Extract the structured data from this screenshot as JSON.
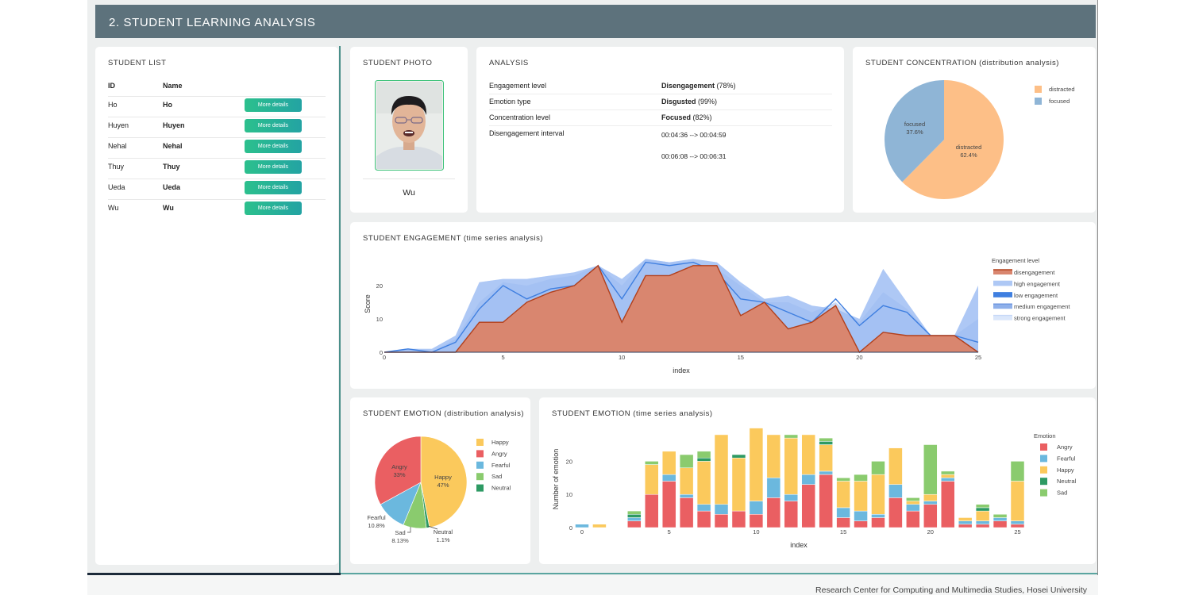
{
  "header": {
    "title": "2. STUDENT LEARNING ANALYSIS"
  },
  "student_list": {
    "title": "STUDENT LIST",
    "col_id": "ID",
    "col_name": "Name",
    "rows": [
      {
        "id": "Ho",
        "name": "Ho",
        "button": "More details"
      },
      {
        "id": "Huyen",
        "name": "Huyen",
        "button": "More details"
      },
      {
        "id": "Nehal",
        "name": "Nehal",
        "button": "More details"
      },
      {
        "id": "Thuy",
        "name": "Thuy",
        "button": "More details"
      },
      {
        "id": "Ueda",
        "name": "Ueda",
        "button": "More details"
      },
      {
        "id": "Wu",
        "name": "Wu",
        "button": "More details"
      }
    ]
  },
  "photo": {
    "title": "STUDENT PHOTO",
    "name": "Wu"
  },
  "analysis": {
    "title": "ANALYSIS",
    "engagement_label": "Engagement level",
    "engagement_value": "Disengagement",
    "engagement_pct": "(78%)",
    "emotion_label": "Emotion type",
    "emotion_value": "Disgusted",
    "emotion_pct": "(99%)",
    "concentration_label": "Concentration level",
    "concentration_value": "Focused",
    "concentration_pct": "(82%)",
    "interval_label": "Disengagement interval",
    "intervals": [
      "00:04:36 --> 00:04:59",
      "00:06:08 --> 00:06:31"
    ]
  },
  "colors": {
    "header": "#5d727c",
    "distracted": "#fdbf87",
    "focused": "#8fb5d6",
    "disengagement": "#d9866f",
    "engagement_band": "#aec8f5",
    "low_line": "#3f7fe0",
    "angry": "#ea5f62",
    "fearful": "#6bb8de",
    "happy": "#fbc95c",
    "neutral": "#2d9a63",
    "sad": "#8acb6e",
    "button_start": "#2cc08d",
    "button_end": "#23a3a3"
  },
  "concentration": {
    "title": "STUDENT CONCENTRATION (distribution analysis)",
    "legend": [
      "distracted",
      "focused"
    ],
    "slice_labels": {
      "distracted": [
        "distracted",
        "62.4%"
      ],
      "focused": [
        "focused",
        "37.6%"
      ]
    }
  },
  "engagement": {
    "title": "STUDENT ENGAGEMENT (time series analysis)",
    "legend_title": "Engagement level",
    "legend": [
      "disengagement",
      "high engagement",
      "low engagement",
      "medium engagement",
      "strong engagement"
    ],
    "xlabel": "index",
    "ylabel": "Score",
    "xticks": [
      "0",
      "5",
      "10",
      "15",
      "20",
      "25"
    ],
    "yticks": [
      "0",
      "10",
      "20"
    ]
  },
  "emotion_dist": {
    "title": "STUDENT EMOTION (distribution analysis)",
    "legend": [
      "Happy",
      "Angry",
      "Fearful",
      "Sad",
      "Neutral"
    ],
    "slice_labels": {
      "happy": [
        "Happy",
        "47%"
      ],
      "angry": [
        "Angry",
        "33%"
      ],
      "fearful": [
        "Fearful",
        "10.8%"
      ],
      "sad": [
        "Sad",
        "8.13%"
      ],
      "neutral": [
        "Neutral",
        "1.1%"
      ]
    }
  },
  "emotion_ts": {
    "title": "STUDENT EMOTION (time series analysis)",
    "legend_title": "Emotion",
    "legend": [
      "Angry",
      "Fearful",
      "Happy",
      "Neutral",
      "Sad"
    ],
    "xlabel": "index",
    "ylabel": "Number of emotion",
    "xticks": [
      "0",
      "5",
      "10",
      "15",
      "20",
      "25"
    ],
    "yticks": [
      "0",
      "10",
      "20"
    ]
  },
  "chart_data": [
    {
      "type": "pie",
      "title": "STUDENT CONCENTRATION (distribution analysis)",
      "labels": [
        "distracted",
        "focused"
      ],
      "values": [
        62.4,
        37.6
      ]
    },
    {
      "type": "area",
      "title": "STUDENT ENGAGEMENT (time series analysis)",
      "xlabel": "index",
      "ylabel": "Score",
      "x": [
        0,
        1,
        2,
        3,
        4,
        5,
        6,
        7,
        8,
        9,
        10,
        11,
        12,
        13,
        14,
        15,
        16,
        17,
        18,
        19,
        20,
        21,
        22,
        23,
        24,
        25
      ],
      "xlim": [
        0,
        25
      ],
      "ylim": [
        0,
        27
      ],
      "series": [
        {
          "name": "disengagement",
          "values": [
            0,
            0,
            0,
            0,
            9,
            9,
            15,
            18,
            20,
            26,
            9,
            23,
            23,
            26,
            26,
            11,
            15,
            7,
            9,
            14,
            0,
            6,
            5,
            5,
            5,
            0
          ]
        },
        {
          "name": "low engagement",
          "values": [
            0,
            1,
            0,
            3,
            13,
            20,
            16,
            19,
            20,
            26,
            16,
            27,
            26,
            27,
            24,
            16,
            15,
            12,
            9,
            16,
            8,
            14,
            12,
            5,
            5,
            3
          ]
        },
        {
          "name": "high engagement",
          "values": [
            0,
            1,
            1,
            5,
            21,
            22,
            22,
            23,
            24,
            26,
            22,
            28,
            27,
            28,
            27,
            21,
            16,
            17,
            14,
            13,
            10,
            25,
            15,
            5,
            5,
            20
          ]
        },
        {
          "name": "medium engagement",
          "values": [
            0,
            1,
            0,
            4,
            15,
            21,
            20,
            22,
            23,
            26,
            20,
            28,
            27,
            27,
            25,
            20,
            15,
            15,
            12,
            15,
            9,
            18,
            13,
            5,
            5,
            10
          ]
        },
        {
          "name": "strong engagement",
          "values": [
            0,
            1,
            1,
            5,
            21,
            22,
            22,
            23,
            24,
            26,
            22,
            28,
            27,
            28,
            27,
            21,
            16,
            17,
            14,
            13,
            10,
            25,
            15,
            5,
            5,
            20
          ]
        }
      ]
    },
    {
      "type": "pie",
      "title": "STUDENT EMOTION (distribution analysis)",
      "labels": [
        "Happy",
        "Angry",
        "Fearful",
        "Sad",
        "Neutral"
      ],
      "values": [
        47,
        33,
        10.8,
        8.13,
        1.1
      ]
    },
    {
      "type": "bar",
      "title": "STUDENT EMOTION (time series analysis)",
      "stacked": true,
      "xlabel": "index",
      "ylabel": "Number of emotion",
      "x": [
        0,
        1,
        2,
        3,
        4,
        5,
        6,
        7,
        8,
        9,
        10,
        11,
        12,
        13,
        14,
        15,
        16,
        17,
        18,
        19,
        20,
        21,
        22,
        23,
        24,
        25
      ],
      "ylim": [
        0,
        29
      ],
      "series": [
        {
          "name": "Angry",
          "values": [
            0,
            0,
            0,
            2,
            10,
            14,
            9,
            5,
            4,
            5,
            4,
            9,
            8,
            13,
            16,
            3,
            2,
            3,
            9,
            5,
            7,
            14,
            1,
            1,
            2,
            1
          ]
        },
        {
          "name": "Fearful",
          "values": [
            1,
            0,
            0,
            1,
            0,
            2,
            1,
            2,
            3,
            0,
            4,
            6,
            2,
            3,
            1,
            3,
            3,
            1,
            4,
            2,
            1,
            1,
            1,
            1,
            1,
            1
          ]
        },
        {
          "name": "Happy",
          "values": [
            0,
            1,
            0,
            0,
            9,
            7,
            8,
            13,
            21,
            16,
            22,
            13,
            17,
            12,
            8,
            8,
            9,
            12,
            11,
            1,
            2,
            1,
            1,
            3,
            0,
            12
          ]
        },
        {
          "name": "Neutral",
          "values": [
            0,
            0,
            0,
            1,
            0,
            0,
            0,
            1,
            0,
            1,
            0,
            0,
            0,
            0,
            1,
            0,
            0,
            0,
            0,
            0,
            0,
            0,
            0,
            1,
            0,
            0
          ]
        },
        {
          "name": "Sad",
          "values": [
            0,
            0,
            0,
            1,
            1,
            0,
            4,
            2,
            0,
            0,
            0,
            0,
            1,
            0,
            1,
            1,
            2,
            4,
            0,
            1,
            15,
            1,
            0,
            1,
            1,
            6
          ]
        }
      ]
    }
  ]
}
